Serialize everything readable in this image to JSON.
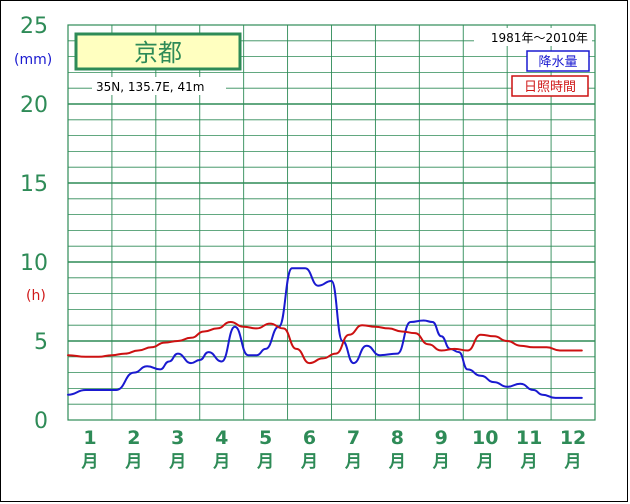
{
  "chart_data": {
    "type": "line",
    "title": "京都",
    "subtitle": "35N, 135.7E, 41m",
    "period": "1981年〜2010年",
    "y_ticks": [
      "0",
      "5",
      "10",
      "15",
      "20",
      "25"
    ],
    "ylim": [
      0,
      25
    ],
    "y_units": {
      "left_top": "(mm)",
      "left_mid": "(h)"
    },
    "months": [
      {
        "num": "1",
        "suffix": "月"
      },
      {
        "num": "2",
        "suffix": "月"
      },
      {
        "num": "3",
        "suffix": "月"
      },
      {
        "num": "4",
        "suffix": "月"
      },
      {
        "num": "5",
        "suffix": "月"
      },
      {
        "num": "6",
        "suffix": "月"
      },
      {
        "num": "7",
        "suffix": "月"
      },
      {
        "num": "8",
        "suffix": "月"
      },
      {
        "num": "9",
        "suffix": "月"
      },
      {
        "num": "10",
        "suffix": "月"
      },
      {
        "num": "11",
        "suffix": "月"
      },
      {
        "num": "12",
        "suffix": "月"
      }
    ],
    "grid": true,
    "legend_position": "top-right",
    "series": [
      {
        "name": "降水量",
        "color": "#1a1ad0",
        "x": [
          0.5,
          0.9,
          1.2,
          1.6,
          2.0,
          2.3,
          2.6,
          2.8,
          3.0,
          3.3,
          3.5,
          3.7,
          4.0,
          4.3,
          4.6,
          4.8,
          5.0,
          5.3,
          5.6,
          5.9,
          6.2,
          6.5,
          6.75,
          7.0,
          7.3,
          7.6,
          8.0,
          8.3,
          8.6,
          8.8,
          9.0,
          9.2,
          9.4,
          9.6,
          9.9,
          10.2,
          10.5,
          10.8,
          11.1,
          11.3,
          11.6,
          11.9,
          12.2
        ],
        "values": [
          1.6,
          1.9,
          1.9,
          1.9,
          3.0,
          3.4,
          3.2,
          3.7,
          4.2,
          3.6,
          3.8,
          4.3,
          3.7,
          5.9,
          4.1,
          4.1,
          4.5,
          5.9,
          9.6,
          9.6,
          8.5,
          8.8,
          5.0,
          3.6,
          4.7,
          4.1,
          4.2,
          6.2,
          6.3,
          6.2,
          5.3,
          4.5,
          4.3,
          3.2,
          2.8,
          2.4,
          2.1,
          2.3,
          1.9,
          1.6,
          1.4,
          1.4,
          1.4
        ],
        "unit": "mm"
      },
      {
        "name": "日照時間",
        "color": "#cc1111",
        "x": [
          0.5,
          0.9,
          1.2,
          1.5,
          1.8,
          2.1,
          2.4,
          2.7,
          3.0,
          3.3,
          3.6,
          3.9,
          4.2,
          4.5,
          4.8,
          5.1,
          5.4,
          5.7,
          6.0,
          6.3,
          6.6,
          6.9,
          7.2,
          7.5,
          7.8,
          8.1,
          8.4,
          8.7,
          9.0,
          9.3,
          9.6,
          9.9,
          10.2,
          10.5,
          10.8,
          11.1,
          11.4,
          11.7,
          12.0,
          12.2
        ],
        "values": [
          4.1,
          4.0,
          4.0,
          4.1,
          4.2,
          4.4,
          4.6,
          4.9,
          5.0,
          5.2,
          5.6,
          5.8,
          6.2,
          5.9,
          5.8,
          6.1,
          5.8,
          4.5,
          3.6,
          3.9,
          4.2,
          5.4,
          6.0,
          5.9,
          5.8,
          5.6,
          5.5,
          4.8,
          4.4,
          4.5,
          4.4,
          5.4,
          5.3,
          5.0,
          4.7,
          4.6,
          4.6,
          4.4,
          4.4,
          4.4
        ],
        "unit": "h"
      }
    ]
  }
}
